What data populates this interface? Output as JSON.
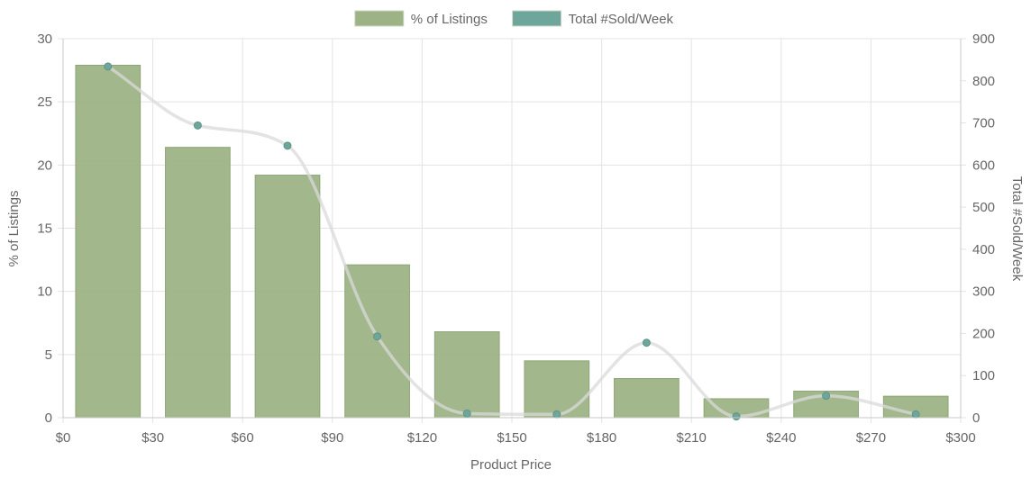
{
  "chart_data": {
    "type": "bar",
    "legend": {
      "position": "top",
      "items": [
        {
          "label": "% of Listings",
          "color": "#9db385"
        },
        {
          "label": "Total #Sold/Week",
          "color": "#6fa69c"
        }
      ]
    },
    "xlabel": "Product Price",
    "ylabel_left": "% of Listings",
    "ylabel_right": "Total #Sold/Week",
    "x_ticks": [
      "$0",
      "$30",
      "$60",
      "$90",
      "$120",
      "$150",
      "$180",
      "$210",
      "$240",
      "$270",
      "$300"
    ],
    "xlim": [
      0,
      300
    ],
    "y_left_ticks": [
      "0",
      "5",
      "10",
      "15",
      "20",
      "25",
      "30"
    ],
    "ylim_left": [
      0,
      30
    ],
    "y_right_ticks": [
      "0",
      "100",
      "200",
      "300",
      "400",
      "500",
      "600",
      "700",
      "800",
      "900"
    ],
    "ylim_right": [
      0,
      900
    ],
    "grid": true,
    "x": [
      15,
      45,
      75,
      105,
      135,
      165,
      195,
      225,
      255,
      285
    ],
    "series": [
      {
        "name": "% of Listings",
        "type": "bar",
        "axis": "left",
        "color": "#9db385",
        "values": [
          27.9,
          21.4,
          19.2,
          12.1,
          6.8,
          4.5,
          3.1,
          1.5,
          2.1,
          1.7
        ]
      },
      {
        "name": "Total #Sold/Week",
        "type": "line",
        "axis": "right",
        "color": "#6fa69c",
        "line_color": "#d9d9d9",
        "values": [
          834,
          694,
          646,
          193,
          10,
          8,
          178,
          3,
          52,
          8
        ]
      }
    ]
  }
}
